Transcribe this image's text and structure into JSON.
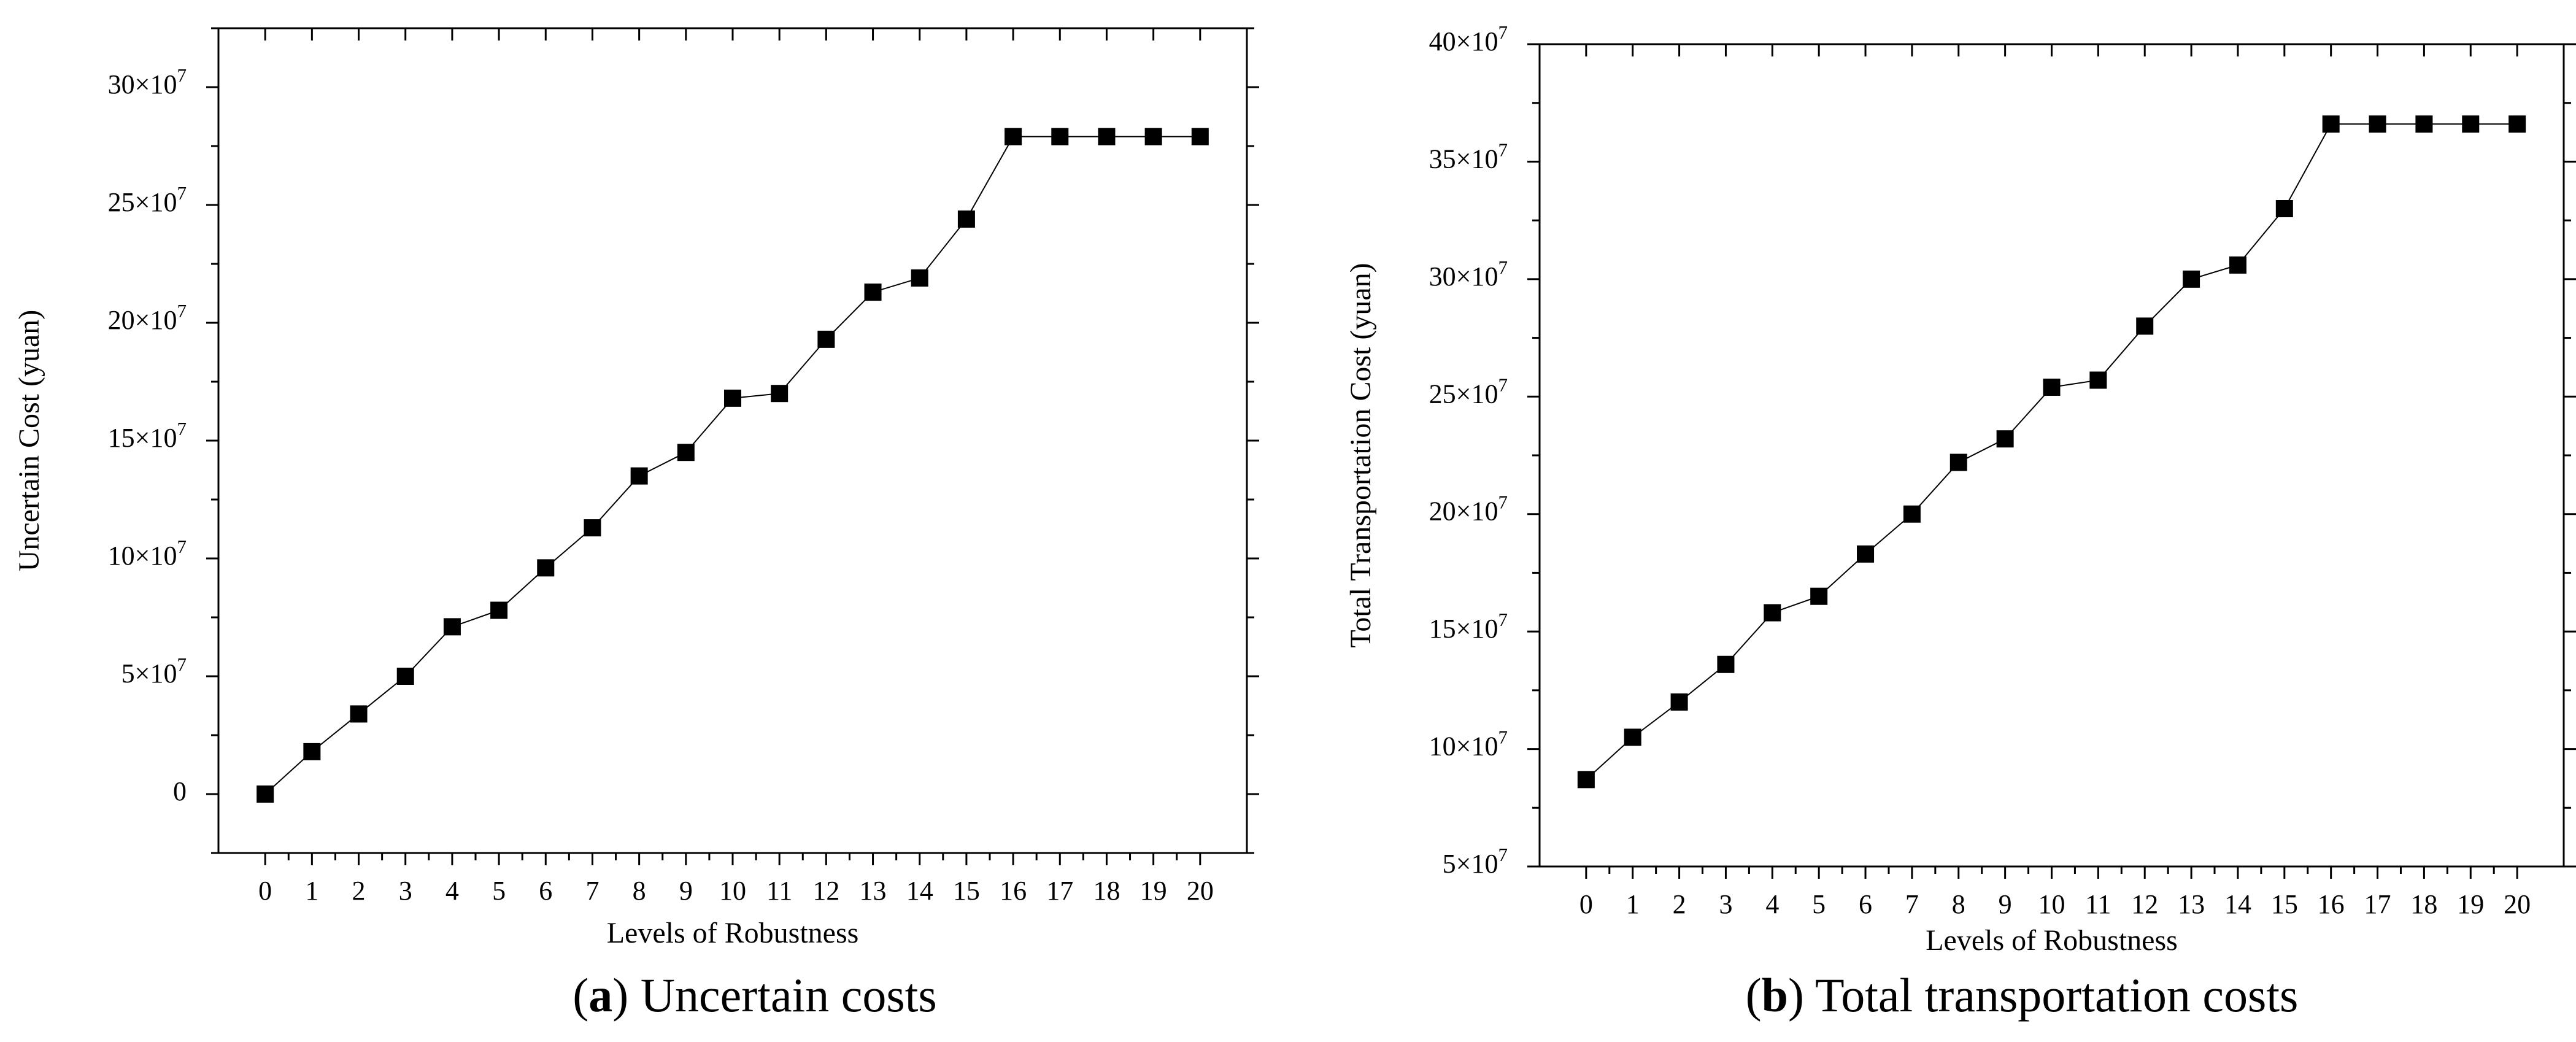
{
  "chart_data": [
    {
      "type": "line",
      "panel": "a",
      "caption": {
        "open": "(",
        "letter": "a",
        "close": ")",
        "text": " Uncertain costs"
      },
      "xlabel": "Levels of Robustness",
      "ylabel": "Uncertain Cost (yuan)",
      "x": [
        0,
        1,
        2,
        3,
        4,
        5,
        6,
        7,
        8,
        9,
        10,
        11,
        12,
        13,
        14,
        15,
        16,
        17,
        18,
        19,
        20
      ],
      "xlim": [
        -1,
        21
      ],
      "ylim": [
        -2.5,
        32.5
      ],
      "yticks": [
        0,
        5,
        10,
        15,
        20,
        25,
        30
      ],
      "ytick_labels": [
        "0",
        "5×10⁷",
        "10×10⁷",
        "15×10⁷",
        "20×10⁷",
        "25×10⁷",
        "30×10⁷"
      ],
      "series": [
        {
          "name": "Uncertain Cost",
          "units": "×10⁷ yuan",
          "values": [
            0,
            1.8,
            3.4,
            5.0,
            7.1,
            7.8,
            9.6,
            11.3,
            13.5,
            14.5,
            16.8,
            17.0,
            19.3,
            21.3,
            21.9,
            24.4,
            27.9,
            27.9,
            27.9,
            27.9,
            27.9
          ]
        }
      ]
    },
    {
      "type": "line",
      "panel": "b",
      "caption": {
        "open": "(",
        "letter": "b",
        "close": ")",
        "text": " Total transportation costs"
      },
      "xlabel": "Levels of Robustness",
      "ylabel": "Total Transportation Cost (yuan)",
      "x": [
        0,
        1,
        2,
        3,
        4,
        5,
        6,
        7,
        8,
        9,
        10,
        11,
        12,
        13,
        14,
        15,
        16,
        17,
        18,
        19,
        20
      ],
      "xlim": [
        -1,
        21
      ],
      "ylim": [
        5,
        40
      ],
      "yticks": [
        5,
        10,
        15,
        20,
        25,
        30,
        35,
        40
      ],
      "ytick_labels": [
        "5×10⁷",
        "10×10⁷",
        "15×10⁷",
        "20×10⁷",
        "25×10⁷",
        "30×10⁷",
        "35×10⁷",
        "40×10⁷"
      ],
      "series": [
        {
          "name": "Total Transportation Cost",
          "units": "×10⁷ yuan",
          "values": [
            8.7,
            10.5,
            12.0,
            13.6,
            15.8,
            16.5,
            18.3,
            20.0,
            22.2,
            23.2,
            25.4,
            25.7,
            28.0,
            30.0,
            30.6,
            33.0,
            36.6,
            36.6,
            36.6,
            36.6,
            36.6
          ]
        }
      ]
    }
  ]
}
